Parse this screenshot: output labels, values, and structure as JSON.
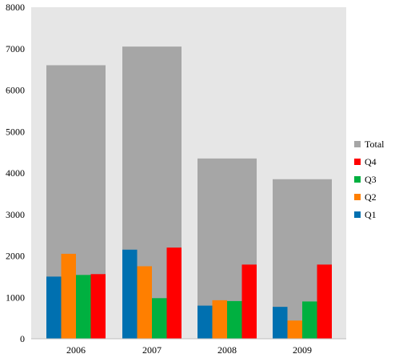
{
  "chart_data": {
    "type": "bar",
    "categories": [
      "2006",
      "2007",
      "2008",
      "2009"
    ],
    "total": {
      "name": "Total",
      "values": [
        6600,
        7050,
        4350,
        3850
      ]
    },
    "series": [
      {
        "name": "Q1",
        "values": [
          1500,
          2150,
          800,
          770
        ]
      },
      {
        "name": "Q2",
        "values": [
          2050,
          1750,
          930,
          440
        ]
      },
      {
        "name": "Q3",
        "values": [
          1540,
          980,
          910,
          900
        ]
      },
      {
        "name": "Q4",
        "values": [
          1560,
          2200,
          1790,
          1790
        ]
      }
    ],
    "y_ticks": [
      "0",
      "1000",
      "2000",
      "3000",
      "4000",
      "5000",
      "6000",
      "7000",
      "8000"
    ],
    "ylim": [
      0,
      8000
    ],
    "title": "",
    "xlabel": "",
    "ylabel": "",
    "grid": false,
    "legend_position": "right",
    "legend_order": [
      "Total",
      "Q4",
      "Q3",
      "Q2",
      "Q1"
    ]
  },
  "colors": {
    "plot_bg": "#e6e6e6",
    "Total": "#a6a6a6",
    "Q1": "#0070b0",
    "Q2": "#ff7f00",
    "Q3": "#00b040",
    "Q4": "#ff0000"
  }
}
